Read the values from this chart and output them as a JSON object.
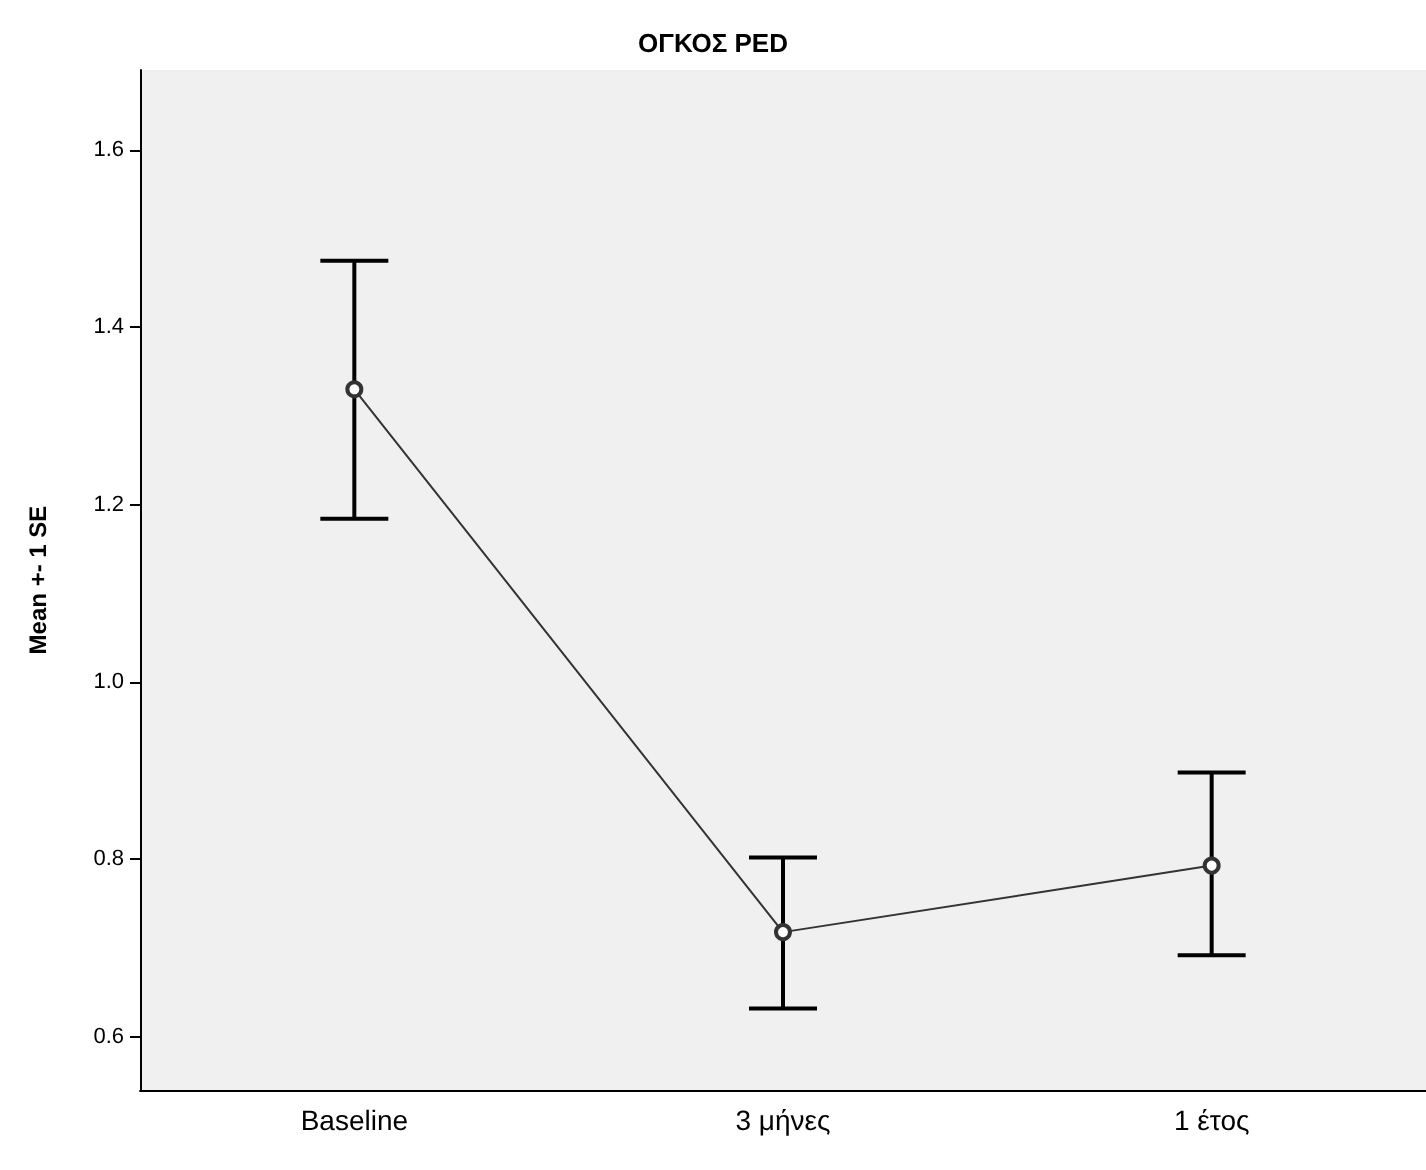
{
  "chart_data": {
    "type": "line",
    "title": "ΟΓΚΟΣ PED",
    "ylabel": "Mean +- 1 SE",
    "categories": [
      "Baseline",
      "3 μήνες",
      "1 έτος"
    ],
    "values": [
      1.33,
      0.718,
      0.793
    ],
    "errors": [
      [
        1.184,
        1.475
      ],
      [
        0.632,
        0.802
      ],
      [
        0.692,
        0.898
      ]
    ],
    "color": "#333333",
    "marker": "circle",
    "ylim": [
      0.54,
      1.69
    ],
    "yticks": [
      {
        "value": 0.6,
        "label": "0.6"
      },
      {
        "value": 0.8,
        "label": "0.8"
      },
      {
        "value": 1,
        "label": "1.0"
      },
      {
        "value": 1.2,
        "label": "1.2"
      },
      {
        "value": 1.4,
        "label": "1.4"
      },
      {
        "value": 1.6,
        "label": "1.6"
      }
    ]
  }
}
